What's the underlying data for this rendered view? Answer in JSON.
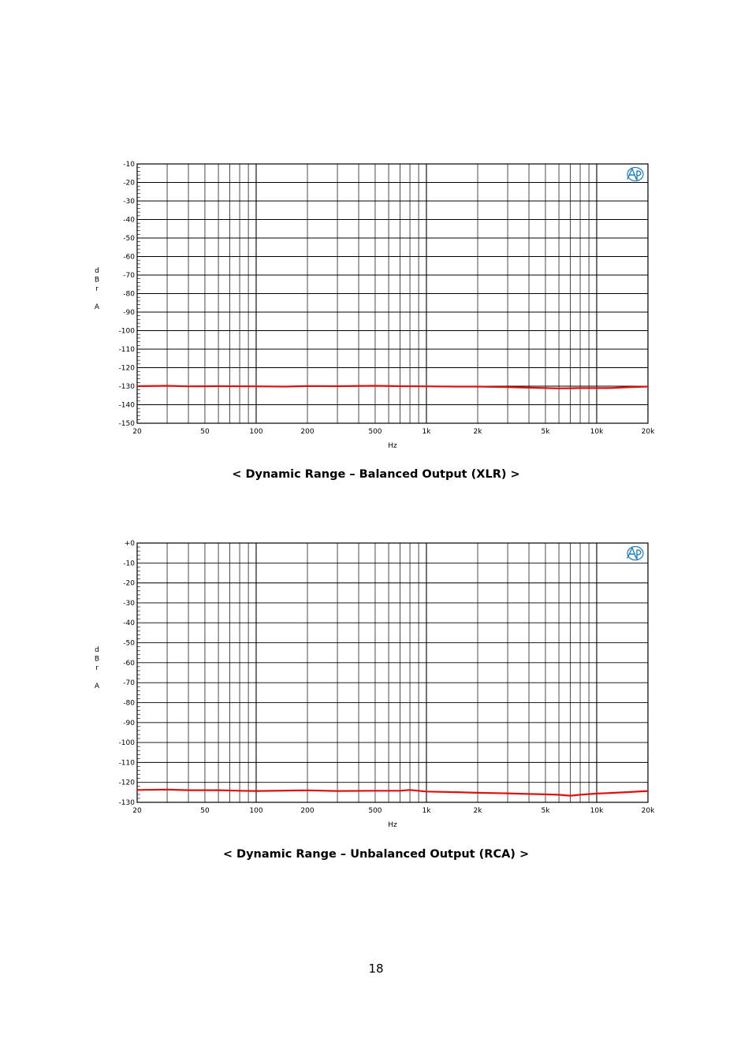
{
  "page_number": "18",
  "colors": {
    "trace": "#e01010",
    "grid": "#000000",
    "logo": "#1f7fc1"
  },
  "logo_icon": "ap-logo-icon",
  "chart_data": [
    {
      "type": "line",
      "title": "",
      "caption": "< Dynamic Range – Balanced Output (XLR) >",
      "xlabel": "Hz",
      "ylabel": [
        "d",
        "B",
        "r",
        "",
        "A"
      ],
      "x_scale": "log",
      "xlim": [
        20,
        20000
      ],
      "ylim": [
        -150,
        -10
      ],
      "x_ticks": [
        {
          "v": 20,
          "label": "20"
        },
        {
          "v": 50,
          "label": "50"
        },
        {
          "v": 100,
          "label": "100"
        },
        {
          "v": 200,
          "label": "200"
        },
        {
          "v": 500,
          "label": "500"
        },
        {
          "v": 1000,
          "label": "1k"
        },
        {
          "v": 2000,
          "label": "2k"
        },
        {
          "v": 5000,
          "label": "5k"
        },
        {
          "v": 10000,
          "label": "10k"
        },
        {
          "v": 20000,
          "label": "20k"
        }
      ],
      "y_ticks": [
        {
          "v": -10,
          "label": "-10"
        },
        {
          "v": -20,
          "label": "-20"
        },
        {
          "v": -30,
          "label": "-30"
        },
        {
          "v": -40,
          "label": "-40"
        },
        {
          "v": -50,
          "label": "-50"
        },
        {
          "v": -60,
          "label": "-60"
        },
        {
          "v": -70,
          "label": "-70"
        },
        {
          "v": -80,
          "label": "-80"
        },
        {
          "v": -90,
          "label": "-90"
        },
        {
          "v": -100,
          "label": "-100"
        },
        {
          "v": -110,
          "label": "-110"
        },
        {
          "v": -120,
          "label": "-120"
        },
        {
          "v": -130,
          "label": "-130"
        },
        {
          "v": -140,
          "label": "-140"
        },
        {
          "v": -150,
          "label": "-150"
        }
      ],
      "series": [
        {
          "x": [
            20,
            30,
            40,
            60,
            100,
            150,
            200,
            300,
            500,
            700,
            1000,
            1500,
            2000,
            3000,
            4000,
            5000,
            6000,
            7000,
            8000,
            10000,
            12000,
            15000,
            20000
          ],
          "y": [
            -130.0,
            -129.8,
            -130.1,
            -130.0,
            -130.1,
            -130.2,
            -129.9,
            -130.0,
            -129.8,
            -130.0,
            -130.1,
            -130.2,
            -130.2,
            -130.5,
            -130.8,
            -131.0,
            -131.2,
            -131.1,
            -131.0,
            -131.0,
            -131.0,
            -130.6,
            -130.2
          ]
        }
      ]
    },
    {
      "type": "line",
      "title": "",
      "caption": "< Dynamic Range – Unbalanced Output (RCA) >",
      "xlabel": "Hz",
      "ylabel": [
        "d",
        "B",
        "r",
        "",
        "A"
      ],
      "x_scale": "log",
      "xlim": [
        20,
        20000
      ],
      "ylim": [
        -130,
        0
      ],
      "x_ticks": [
        {
          "v": 20,
          "label": "20"
        },
        {
          "v": 50,
          "label": "50"
        },
        {
          "v": 100,
          "label": "100"
        },
        {
          "v": 200,
          "label": "200"
        },
        {
          "v": 500,
          "label": "500"
        },
        {
          "v": 1000,
          "label": "1k"
        },
        {
          "v": 2000,
          "label": "2k"
        },
        {
          "v": 5000,
          "label": "5k"
        },
        {
          "v": 10000,
          "label": "10k"
        },
        {
          "v": 20000,
          "label": "20k"
        }
      ],
      "y_ticks": [
        {
          "v": 0,
          "label": "+0"
        },
        {
          "v": -10,
          "label": "-10"
        },
        {
          "v": -20,
          "label": "-20"
        },
        {
          "v": -30,
          "label": "-30"
        },
        {
          "v": -40,
          "label": "-40"
        },
        {
          "v": -50,
          "label": "-50"
        },
        {
          "v": -60,
          "label": "-60"
        },
        {
          "v": -70,
          "label": "-70"
        },
        {
          "v": -80,
          "label": "-80"
        },
        {
          "v": -90,
          "label": "-90"
        },
        {
          "v": -100,
          "label": "-100"
        },
        {
          "v": -110,
          "label": "-110"
        },
        {
          "v": -120,
          "label": "-120"
        },
        {
          "v": -130,
          "label": "-130"
        }
      ],
      "series": [
        {
          "x": [
            20,
            30,
            40,
            60,
            80,
            100,
            150,
            200,
            300,
            500,
            700,
            800,
            1000,
            1500,
            2000,
            3000,
            4000,
            5000,
            6000,
            7000,
            8000,
            10000,
            12000,
            15000,
            20000
          ],
          "y": [
            -123.8,
            -123.6,
            -123.9,
            -123.9,
            -124.2,
            -124.3,
            -124.1,
            -124.0,
            -124.3,
            -124.2,
            -124.2,
            -123.8,
            -124.6,
            -124.9,
            -125.2,
            -125.5,
            -125.8,
            -126.0,
            -126.2,
            -126.7,
            -126.2,
            -125.6,
            -125.3,
            -124.9,
            -124.3
          ]
        }
      ]
    }
  ]
}
